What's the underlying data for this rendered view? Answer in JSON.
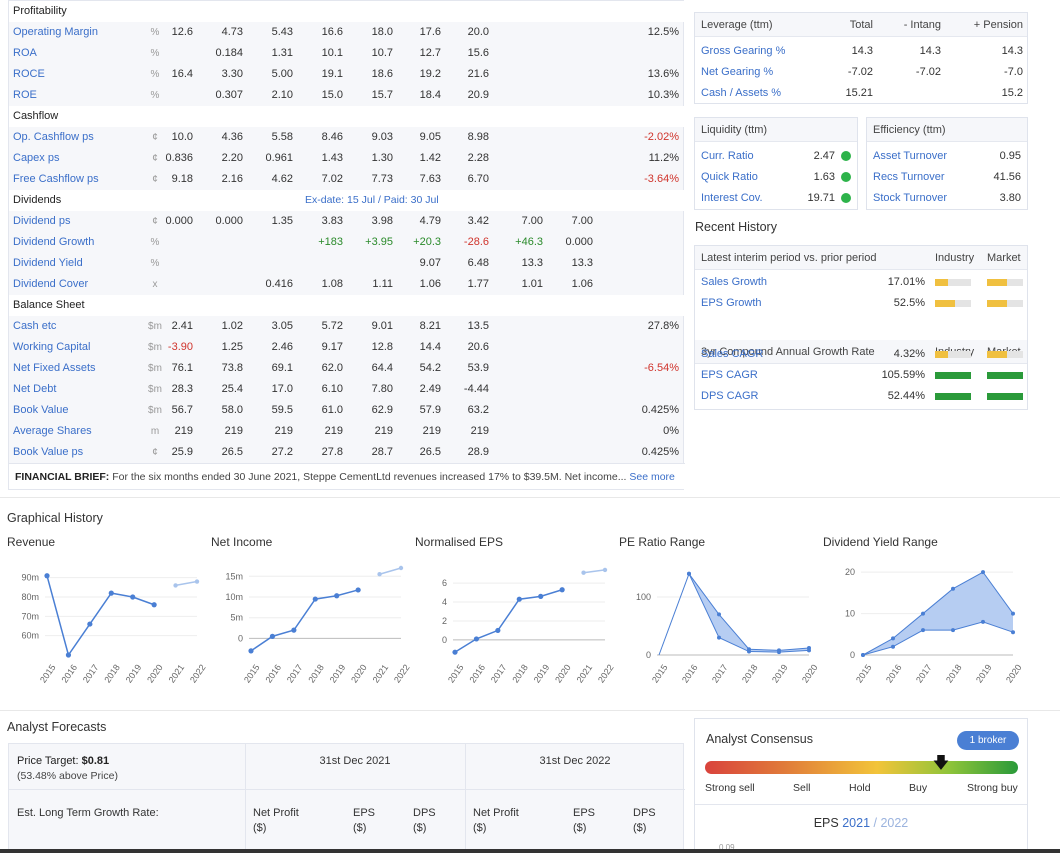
{
  "financials": {
    "rows": [
      {
        "type": "section",
        "label": "Profitability"
      },
      {
        "type": "data",
        "label": "Operating Margin",
        "unit": "%",
        "values": [
          "12.6",
          "4.73",
          "5.43",
          "16.6",
          "18.0",
          "17.6",
          "20.0",
          "",
          ""
        ],
        "right": "12.5%",
        "right_color": "#333"
      },
      {
        "type": "data",
        "label": "ROA",
        "unit": "%",
        "values": [
          "",
          "0.184",
          "1.31",
          "10.1",
          "10.7",
          "12.7",
          "15.6",
          "",
          ""
        ],
        "right": "",
        "right_color": "#333"
      },
      {
        "type": "data",
        "label": "ROCE",
        "unit": "%",
        "values": [
          "16.4",
          "3.30",
          "5.00",
          "19.1",
          "18.6",
          "19.2",
          "21.6",
          "",
          ""
        ],
        "right": "13.6%",
        "right_color": "#333"
      },
      {
        "type": "data",
        "label": "ROE",
        "unit": "%",
        "values": [
          "",
          "0.307",
          "2.10",
          "15.0",
          "15.7",
          "18.4",
          "20.9",
          "",
          ""
        ],
        "right": "10.3%",
        "right_color": "#333"
      },
      {
        "type": "section",
        "label": "Cashflow"
      },
      {
        "type": "data",
        "label": "Op. Cashflow ps",
        "unit": "¢",
        "values": [
          "10.0",
          "4.36",
          "5.58",
          "8.46",
          "9.03",
          "9.05",
          "8.98",
          "",
          ""
        ],
        "right": "-2.02%",
        "right_color": "#d0342c"
      },
      {
        "type": "data",
        "label": "Capex ps",
        "unit": "¢",
        "values": [
          "0.836",
          "2.20",
          "0.961",
          "1.43",
          "1.30",
          "1.42",
          "2.28",
          "",
          ""
        ],
        "right": "11.2%",
        "right_color": "#333"
      },
      {
        "type": "data",
        "label": "Free Cashflow ps",
        "unit": "¢",
        "values": [
          "9.18",
          "2.16",
          "4.62",
          "7.02",
          "7.73",
          "7.63",
          "6.70",
          "",
          ""
        ],
        "right": "-3.64%",
        "right_color": "#d0342c"
      },
      {
        "type": "section",
        "label": "Dividends",
        "note": "Ex-date: 15 Jul / Paid: 30 Jul"
      },
      {
        "type": "data",
        "label": "Dividend ps",
        "unit": "¢",
        "values": [
          "0.000",
          "0.000",
          "1.35",
          "3.83",
          "3.98",
          "4.79",
          "3.42",
          "7.00",
          "7.00"
        ],
        "right": "",
        "right_color": "#333"
      },
      {
        "type": "data",
        "label": "Dividend Growth",
        "unit": "%",
        "values": [
          "",
          "",
          "",
          "+183",
          "+3.95",
          "+20.3",
          "-28.6",
          "+46.3",
          "0.000"
        ],
        "colors": [
          "",
          "",
          "",
          "#2a8a2a",
          "#2a8a2a",
          "#2a8a2a",
          "#d0342c",
          "#2a8a2a",
          "#333"
        ],
        "right": "",
        "right_color": "#333"
      },
      {
        "type": "data",
        "label": "Dividend Yield",
        "unit": "%",
        "values": [
          "",
          "",
          "",
          "",
          "",
          "9.07",
          "6.48",
          "13.3",
          "13.3"
        ],
        "right": "",
        "right_color": "#333"
      },
      {
        "type": "data",
        "label": "Dividend Cover",
        "unit": "x",
        "values": [
          "",
          "",
          "0.416",
          "1.08",
          "1.11",
          "1.06",
          "1.77",
          "1.01",
          "1.06"
        ],
        "right": "",
        "right_color": "#333"
      },
      {
        "type": "section",
        "label": "Balance Sheet"
      },
      {
        "type": "data",
        "label": "Cash etc",
        "unit": "$m",
        "values": [
          "2.41",
          "1.02",
          "3.05",
          "5.72",
          "9.01",
          "8.21",
          "13.5",
          "",
          ""
        ],
        "right": "27.8%",
        "right_color": "#333"
      },
      {
        "type": "data",
        "label": "Working Capital",
        "unit": "$m",
        "values": [
          "-3.90",
          "1.25",
          "2.46",
          "9.17",
          "12.8",
          "14.4",
          "20.6",
          "",
          ""
        ],
        "colors": [
          "#d0342c",
          "",
          "",
          "",
          "",
          "",
          "",
          "",
          ""
        ],
        "right": "",
        "right_color": "#333"
      },
      {
        "type": "data",
        "label": "Net Fixed Assets",
        "unit": "$m",
        "values": [
          "76.1",
          "73.8",
          "69.1",
          "62.0",
          "64.4",
          "54.2",
          "53.9",
          "",
          ""
        ],
        "right": "-6.54%",
        "right_color": "#d0342c"
      },
      {
        "type": "data",
        "label": "Net Debt",
        "unit": "$m",
        "values": [
          "28.3",
          "25.4",
          "17.0",
          "6.10",
          "7.80",
          "2.49",
          "-4.44",
          "",
          ""
        ],
        "right": "",
        "right_color": "#333"
      },
      {
        "type": "data",
        "label": "Book Value",
        "unit": "$m",
        "values": [
          "56.7",
          "58.0",
          "59.5",
          "61.0",
          "62.9",
          "57.9",
          "63.2",
          "",
          ""
        ],
        "right": "0.425%",
        "right_color": "#333"
      },
      {
        "type": "data",
        "label": "Average Shares",
        "unit": "m",
        "values": [
          "219",
          "219",
          "219",
          "219",
          "219",
          "219",
          "219",
          "",
          ""
        ],
        "right": "0%",
        "right_color": "#333"
      },
      {
        "type": "data",
        "label": "Book Value ps",
        "unit": "¢",
        "values": [
          "25.9",
          "26.5",
          "27.2",
          "27.8",
          "28.7",
          "26.5",
          "28.9",
          "",
          ""
        ],
        "right": "0.425%",
        "right_color": "#333"
      }
    ],
    "brief_label": "FINANCIAL BRIEF:",
    "brief_text": " For the six months ended 30 June 2021, Steppe CementLtd revenues increased 17% to $39.5M. Net income... ",
    "brief_link": "See more"
  },
  "leverage": {
    "title": "Leverage (ttm)",
    "cols": [
      "Total",
      "- Intang",
      "+ Pension"
    ],
    "rows": [
      {
        "label": "Gross Gearing %",
        "v": [
          "14.3",
          "14.3",
          "14.3"
        ]
      },
      {
        "label": "Net Gearing %",
        "v": [
          "-7.02",
          "-7.02",
          "-7.0"
        ]
      },
      {
        "label": "Cash / Assets %",
        "v": [
          "15.21",
          "",
          "15.2"
        ]
      }
    ]
  },
  "liquidity": {
    "title": "Liquidity (ttm)",
    "rows": [
      {
        "label": "Curr. Ratio",
        "v": "2.47"
      },
      {
        "label": "Quick Ratio",
        "v": "1.63"
      },
      {
        "label": "Interest Cov.",
        "v": "19.71"
      }
    ]
  },
  "efficiency": {
    "title": "Efficiency (ttm)",
    "rows": [
      {
        "label": "Asset Turnover",
        "v": "0.95"
      },
      {
        "label": "Recs Turnover",
        "v": "41.56"
      },
      {
        "label": "Stock Turnover",
        "v": "3.80"
      }
    ]
  },
  "recent_history": {
    "title": "Recent History",
    "head1": "Latest interim period vs. prior period",
    "head2": "3yr Compound Annual Growth Rate",
    "col_industry": "Industry",
    "col_market": "Market",
    "rows1": [
      {
        "label": "Sales Growth",
        "v": "17.01%",
        "level": 0.35,
        "color": "#f0c040",
        "ind": 0.55,
        "ind_color": "#f0c040",
        "mkt": 0.55,
        "mkt_color": "#f0c040"
      },
      {
        "label": "EPS Growth",
        "v": "52.5%",
        "level": 0.55,
        "color": "#f0c040",
        "ind": 0.55,
        "ind_color": "#f0c040",
        "mkt": 0.55,
        "mkt_color": "#f0c040"
      }
    ],
    "rows2": [
      {
        "label": "Sales CAGR",
        "v": "4.32%",
        "level": 0.35,
        "color": "#f0c040",
        "ind": 0.55,
        "ind_color": "#f0c040",
        "mkt": 0.55,
        "mkt_color": "#f0c040"
      },
      {
        "label": "EPS CAGR",
        "v": "105.59%",
        "level": 1,
        "color": "#2a9a3a",
        "ind": 1,
        "ind_color": "#2a9a3a",
        "mkt": 1,
        "mkt_color": "#2a9a3a"
      },
      {
        "label": "DPS CAGR",
        "v": "52.44%",
        "level": 1,
        "color": "#2a9a3a",
        "ind": 1,
        "ind_color": "#2a9a3a",
        "mkt": 1,
        "mkt_color": "#2a9a3a"
      }
    ]
  },
  "graphical": {
    "title": "Graphical History",
    "charts": [
      "Revenue",
      "Net Income",
      "Normalised EPS",
      "PE Ratio Range",
      "Dividend Yield Range"
    ]
  },
  "chart_data": [
    {
      "type": "line",
      "title": "Revenue",
      "x": [
        "2015",
        "2016",
        "2017",
        "2018",
        "2019",
        "2020",
        "2021",
        "2022"
      ],
      "yticks": [
        "90m",
        "80m",
        "70m",
        "60m"
      ],
      "values": [
        91,
        50,
        66,
        82,
        80,
        76,
        null,
        null
      ],
      "forecast": [
        null,
        null,
        null,
        null,
        null,
        null,
        86,
        88
      ],
      "ylim": [
        50,
        95
      ]
    },
    {
      "type": "line",
      "title": "Net Income",
      "x": [
        "2015",
        "2016",
        "2017",
        "2018",
        "2019",
        "2020",
        "2021",
        "2022"
      ],
      "yticks": [
        "15m",
        "10m",
        "5m",
        "0"
      ],
      "values": [
        -3,
        0.5,
        2,
        9.5,
        10.3,
        11.7,
        null,
        null
      ],
      "forecast": [
        null,
        null,
        null,
        null,
        null,
        null,
        15.5,
        17
      ],
      "ylim": [
        -4,
        17
      ]
    },
    {
      "type": "line",
      "title": "Normalised EPS",
      "x": [
        "2015",
        "2016",
        "2017",
        "2018",
        "2019",
        "2020",
        "2021",
        "2022"
      ],
      "yticks": [
        "6",
        "4",
        "2",
        "0"
      ],
      "values": [
        -1.3,
        0.1,
        1,
        4.3,
        4.6,
        5.3,
        null,
        null
      ],
      "forecast": [
        null,
        null,
        null,
        null,
        null,
        null,
        7.1,
        7.4
      ],
      "ylim": [
        -1.6,
        7.6
      ]
    },
    {
      "type": "area",
      "title": "PE Ratio Range",
      "x": [
        "2015",
        "2016",
        "2017",
        "2018",
        "2019",
        "2020"
      ],
      "yticks": [
        "100",
        "0"
      ],
      "high": [
        null,
        140,
        70,
        10,
        8,
        12
      ],
      "low": [
        null,
        140,
        30,
        6,
        5,
        8
      ],
      "ylim": [
        0,
        150
      ]
    },
    {
      "type": "area",
      "title": "Dividend Yield Range",
      "x": [
        "2015",
        "2016",
        "2017",
        "2018",
        "2019",
        "2020"
      ],
      "yticks": [
        "20",
        "10",
        "0"
      ],
      "high": [
        0,
        4,
        10,
        16,
        20,
        10
      ],
      "low": [
        0,
        2,
        6,
        6,
        8,
        5.5
      ],
      "ylim": [
        0,
        21
      ]
    }
  ],
  "forecasts": {
    "title": "Analyst Forecasts",
    "price_target_label": "Price Target: ",
    "price_target": "$0.81",
    "price_target_sub": "(53.48% above Price)",
    "ltg": "Est. Long Term Growth Rate:",
    "period1": "31st Dec 2021",
    "period2": "31st Dec 2022",
    "cols": [
      [
        "Net Profit",
        "($)"
      ],
      [
        "EPS",
        "($)"
      ],
      [
        "DPS",
        "($)"
      ],
      [
        "Net Profit",
        "($)"
      ],
      [
        "EPS",
        "($)"
      ],
      [
        "DPS",
        "($)"
      ]
    ]
  },
  "consensus": {
    "title": "Analyst Consensus",
    "badge": "1 broker",
    "labels": [
      "Strong sell",
      "Sell",
      "Hold",
      "Buy",
      "Strong buy"
    ],
    "position": 0.75,
    "eps_label": "EPS ",
    "eps_year1": "2021",
    "eps_sep": " / ",
    "eps_year2": "2022",
    "bottom_text": "0.09"
  }
}
